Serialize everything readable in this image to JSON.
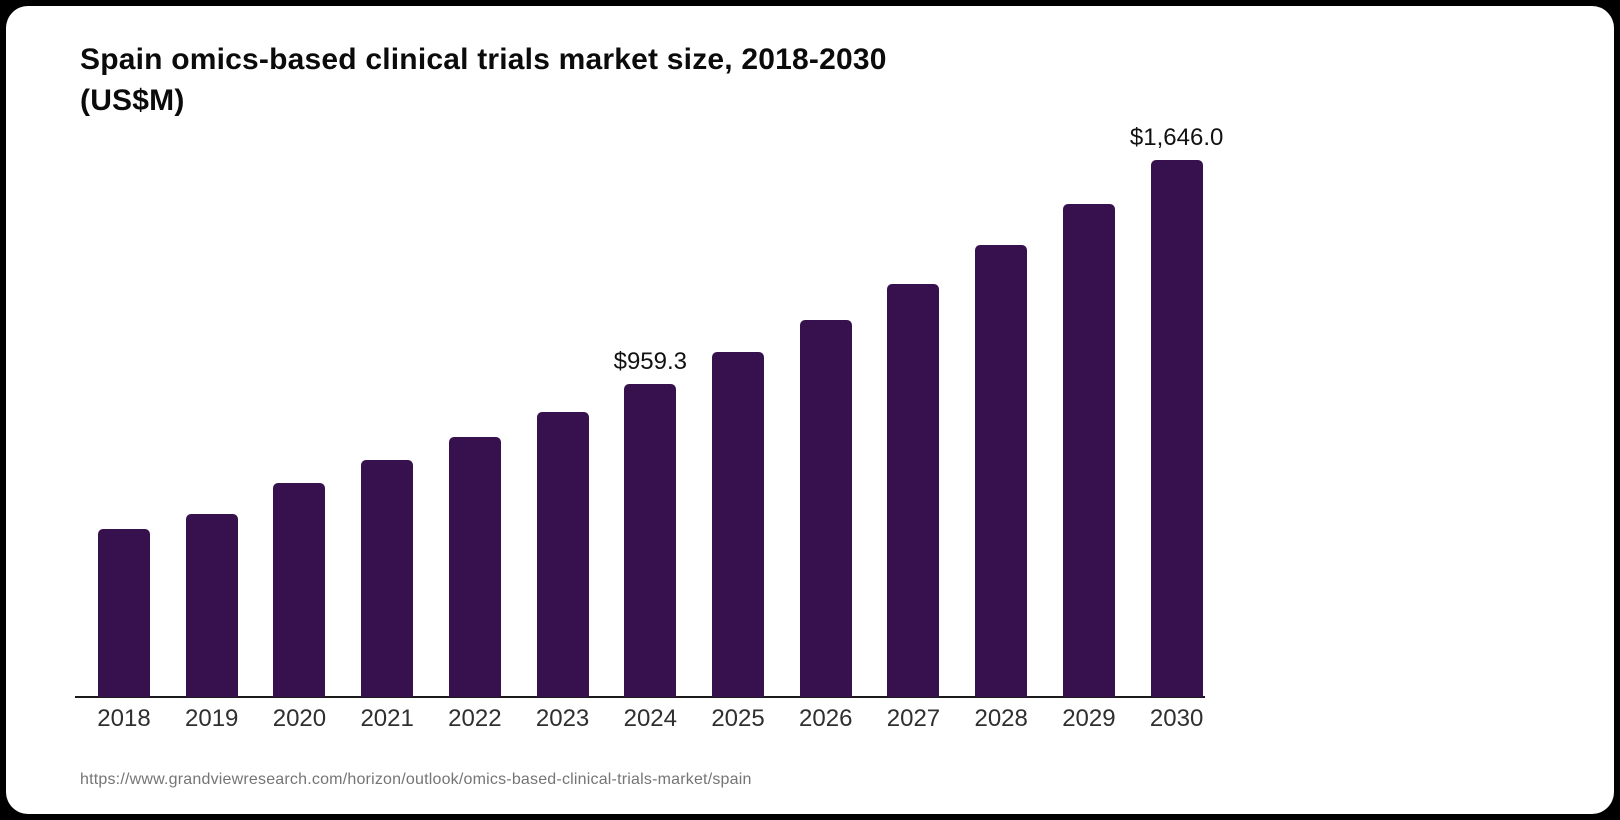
{
  "page": {
    "background_color": "#000000",
    "card_color": "#ffffff"
  },
  "header": {
    "title_line1": "Spain omics-based clinical trials market size, 2018-2030",
    "title_line2": "(US$M)"
  },
  "footer": {
    "source_url": "https://www.grandviewresearch.com/horizon/outlook/omics-based-clinical-trials-market/spain"
  },
  "chart_data": {
    "type": "bar",
    "title": "Spain omics-based clinical trials market size, 2018-2030 (US$M)",
    "xlabel": "",
    "ylabel": "US$M",
    "categories": [
      "2018",
      "2019",
      "2020",
      "2021",
      "2022",
      "2023",
      "2024",
      "2025",
      "2026",
      "2027",
      "2028",
      "2029",
      "2030"
    ],
    "values": [
      515,
      560,
      655,
      725,
      796,
      875,
      959.3,
      1056,
      1157,
      1267,
      1386,
      1512,
      1646.0
    ],
    "value_labels": {
      "2024": "$959.3",
      "2030": "$1,646.0"
    },
    "bar_color": "#37114E",
    "axis_line_color": "#1a1a1a",
    "ylim": [
      0,
      1700
    ],
    "grid": false,
    "legend": false,
    "y_axis": "hidden"
  }
}
